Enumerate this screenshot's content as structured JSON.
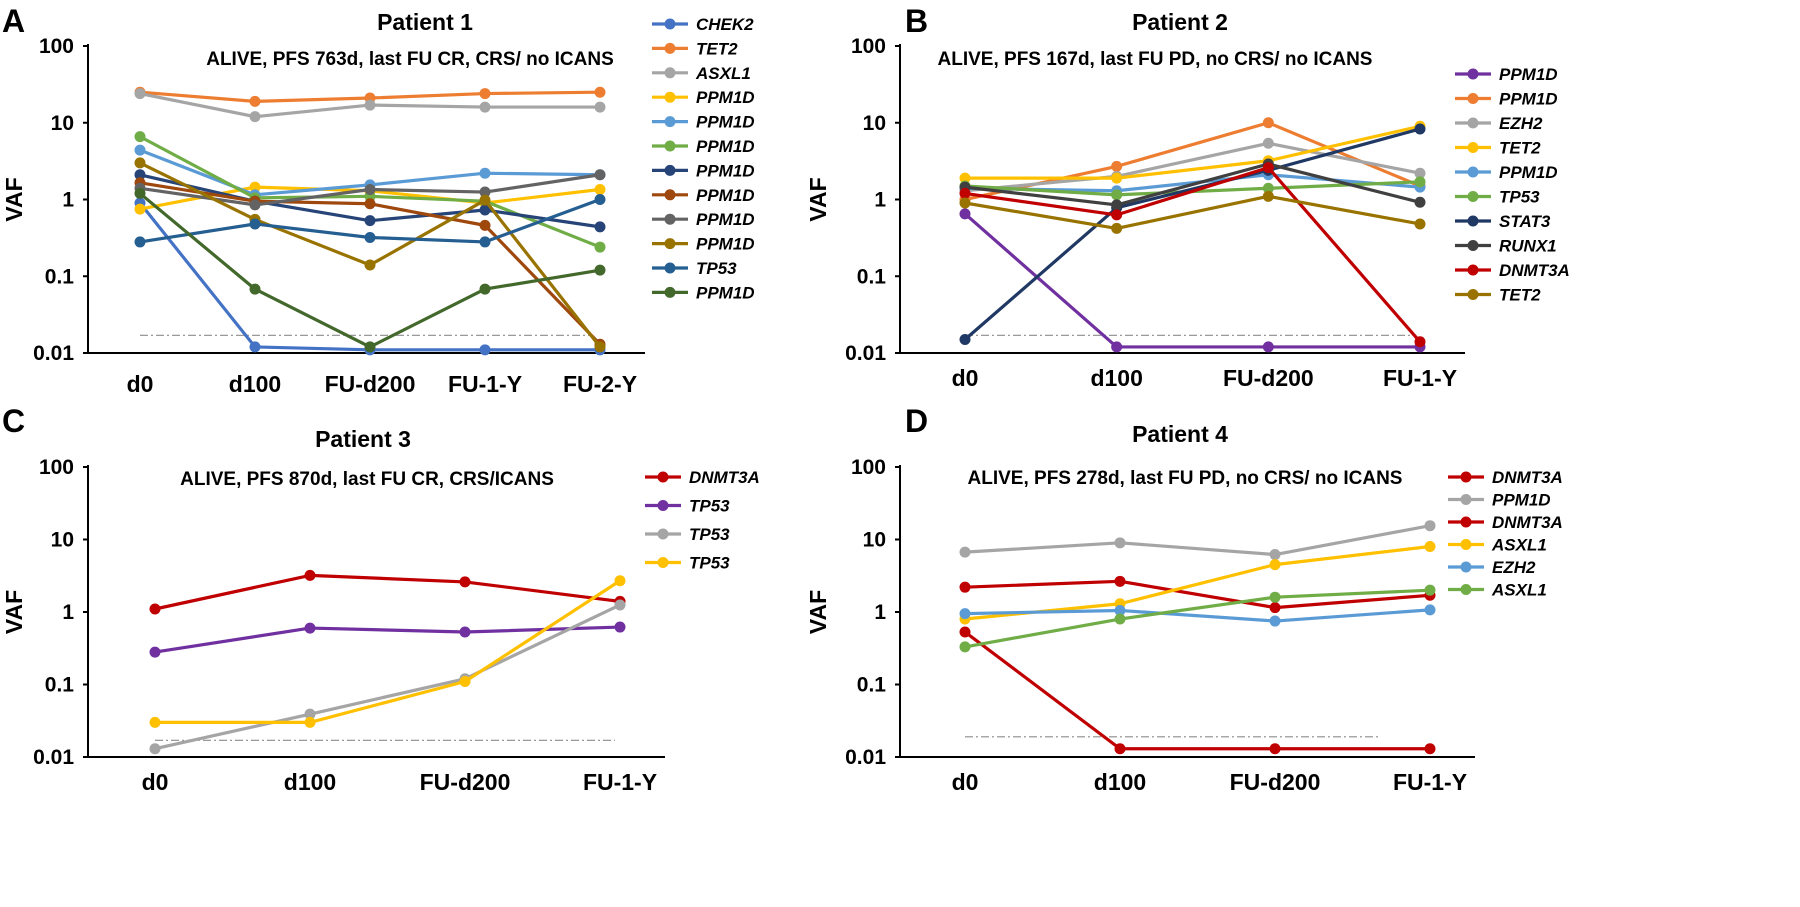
{
  "chart_data": [
    {
      "panel": "A",
      "type": "line",
      "title": "Patient 1",
      "subtitle": "ALIVE, PFS 763d, last FU CR, CRS/ no ICANS",
      "ylabel": "VAF",
      "yscale": "log",
      "ylim": [
        0.01,
        100
      ],
      "yticks": [
        "100",
        "10",
        "1",
        "0.1",
        "0.01"
      ],
      "categories": [
        "d0",
        "d100",
        "FU-d200",
        "FU-1-Y",
        "FU-2-Y"
      ],
      "threshold": 0.017,
      "series": [
        {
          "name": "CHEK2",
          "color": "#4472c4",
          "values": [
            0.9,
            0.012,
            0.011,
            0.011,
            0.011
          ]
        },
        {
          "name": "TET2",
          "color": "#ed7d31",
          "values": [
            25,
            19,
            21,
            24,
            25
          ]
        },
        {
          "name": "ASXL1",
          "color": "#a5a5a5",
          "values": [
            24,
            12,
            17,
            16,
            16
          ]
        },
        {
          "name": "PPM1D",
          "color": "#ffc000",
          "values": [
            0.75,
            1.45,
            1.3,
            0.9,
            1.35
          ]
        },
        {
          "name": "PPM1D",
          "color": "#5b9bd5",
          "values": [
            4.4,
            1.15,
            1.55,
            2.2,
            2.1
          ]
        },
        {
          "name": "PPM1D",
          "color": "#70ad47",
          "values": [
            6.6,
            1.05,
            1.1,
            0.95,
            0.24
          ]
        },
        {
          "name": "PPM1D",
          "color": "#264478",
          "values": [
            2.1,
            0.95,
            0.53,
            0.73,
            0.44
          ]
        },
        {
          "name": "PPM1D",
          "color": "#9e480e",
          "values": [
            1.65,
            0.95,
            0.88,
            0.46,
            0.013
          ]
        },
        {
          "name": "PPM1D",
          "color": "#636363",
          "values": [
            1.4,
            0.85,
            1.35,
            1.25,
            2.1
          ]
        },
        {
          "name": "PPM1D",
          "color": "#997300",
          "values": [
            3.0,
            0.55,
            0.14,
            0.98,
            0.012
          ]
        },
        {
          "name": "TP53",
          "color": "#255e91",
          "values": [
            0.28,
            0.48,
            0.32,
            0.28,
            1.0
          ]
        },
        {
          "name": "PPM1D",
          "color": "#43682b",
          "values": [
            1.2,
            0.068,
            0.012,
            0.068,
            0.12
          ]
        }
      ]
    },
    {
      "panel": "B",
      "type": "line",
      "title": "Patient 2",
      "subtitle": "ALIVE, PFS 167d, last FU PD, no CRS/ no ICANS",
      "ylabel": "VAF",
      "yscale": "log",
      "ylim": [
        0.01,
        100
      ],
      "yticks": [
        "100",
        "10",
        "1",
        "0.1",
        "0.01"
      ],
      "categories": [
        "d0",
        "d100",
        "FU-d200",
        "FU-1-Y"
      ],
      "threshold": 0.017,
      "series": [
        {
          "name": "PPM1D",
          "color": "#7030a0",
          "values": [
            0.65,
            0.012,
            0.012,
            0.012
          ]
        },
        {
          "name": "PPM1D",
          "color": "#ed7d31",
          "values": [
            1.0,
            2.7,
            10,
            1.5
          ]
        },
        {
          "name": "EZH2",
          "color": "#a5a5a5",
          "values": [
            1.3,
            2.0,
            5.4,
            2.2
          ]
        },
        {
          "name": "TET2",
          "color": "#ffc000",
          "values": [
            1.9,
            1.9,
            3.2,
            9.0
          ]
        },
        {
          "name": "PPM1D",
          "color": "#5b9bd5",
          "values": [
            1.4,
            1.3,
            2.1,
            1.45
          ]
        },
        {
          "name": "TP53",
          "color": "#70ad47",
          "values": [
            1.5,
            1.15,
            1.4,
            1.7
          ]
        },
        {
          "name": "STAT3",
          "color": "#203864",
          "values": [
            0.015,
            0.78,
            2.4,
            8.3
          ]
        },
        {
          "name": "RUNX1",
          "color": "#404040",
          "values": [
            1.45,
            0.85,
            2.9,
            0.92
          ]
        },
        {
          "name": "DNMT3A",
          "color": "#c00000",
          "values": [
            1.2,
            0.63,
            2.6,
            0.014
          ]
        },
        {
          "name": "TET2",
          "color": "#997300",
          "values": [
            0.9,
            0.42,
            1.1,
            0.48
          ]
        }
      ]
    },
    {
      "panel": "C",
      "type": "line",
      "title": "Patient 3",
      "subtitle": "ALIVE, PFS 870d, last FU CR, CRS/ICANS",
      "ylabel": "VAF",
      "yscale": "log",
      "ylim": [
        0.01,
        100
      ],
      "yticks": [
        "100",
        "10",
        "1",
        "0.1",
        "0.01"
      ],
      "categories": [
        "d0",
        "d100",
        "FU-d200",
        "FU-1-Y"
      ],
      "threshold": 0.017,
      "series": [
        {
          "name": "DNMT3A",
          "color": "#c00000",
          "values": [
            1.1,
            3.2,
            2.6,
            1.4
          ]
        },
        {
          "name": "TP53",
          "color": "#7030a0",
          "values": [
            0.28,
            0.6,
            0.53,
            0.62
          ]
        },
        {
          "name": "TP53",
          "color": "#a5a5a5",
          "values": [
            0.013,
            0.039,
            0.12,
            1.25
          ]
        },
        {
          "name": "TP53",
          "color": "#ffc000",
          "values": [
            0.03,
            0.03,
            0.11,
            2.7
          ]
        }
      ]
    },
    {
      "panel": "D",
      "type": "line",
      "title": "Patient 4",
      "subtitle": "ALIVE, PFS 278d, last FU PD, no CRS/ no ICANS",
      "ylabel": "VAF",
      "yscale": "log",
      "ylim": [
        0.01,
        100
      ],
      "yticks": [
        "100",
        "10",
        "1",
        "0.1",
        "0.01"
      ],
      "categories": [
        "d0",
        "d100",
        "FU-d200",
        "FU-1-Y"
      ],
      "threshold": 0.019,
      "series": [
        {
          "name": "DNMT3A",
          "color": "#c00000",
          "values": [
            2.2,
            2.65,
            1.15,
            1.7
          ]
        },
        {
          "name": "PPM1D",
          "color": "#a5a5a5",
          "values": [
            6.7,
            9.0,
            6.2,
            15.5
          ]
        },
        {
          "name": "DNMT3A",
          "color": "#c00000",
          "values": [
            0.53,
            0.013,
            0.013,
            0.013
          ]
        },
        {
          "name": "ASXL1",
          "color": "#ffc000",
          "values": [
            0.8,
            1.3,
            4.5,
            8.0
          ]
        },
        {
          "name": "EZH2",
          "color": "#5b9bd5",
          "values": [
            0.95,
            1.05,
            0.75,
            1.07
          ]
        },
        {
          "name": "ASXL1",
          "color": "#70ad47",
          "values": [
            0.33,
            0.8,
            1.6,
            2.0
          ]
        }
      ]
    }
  ]
}
